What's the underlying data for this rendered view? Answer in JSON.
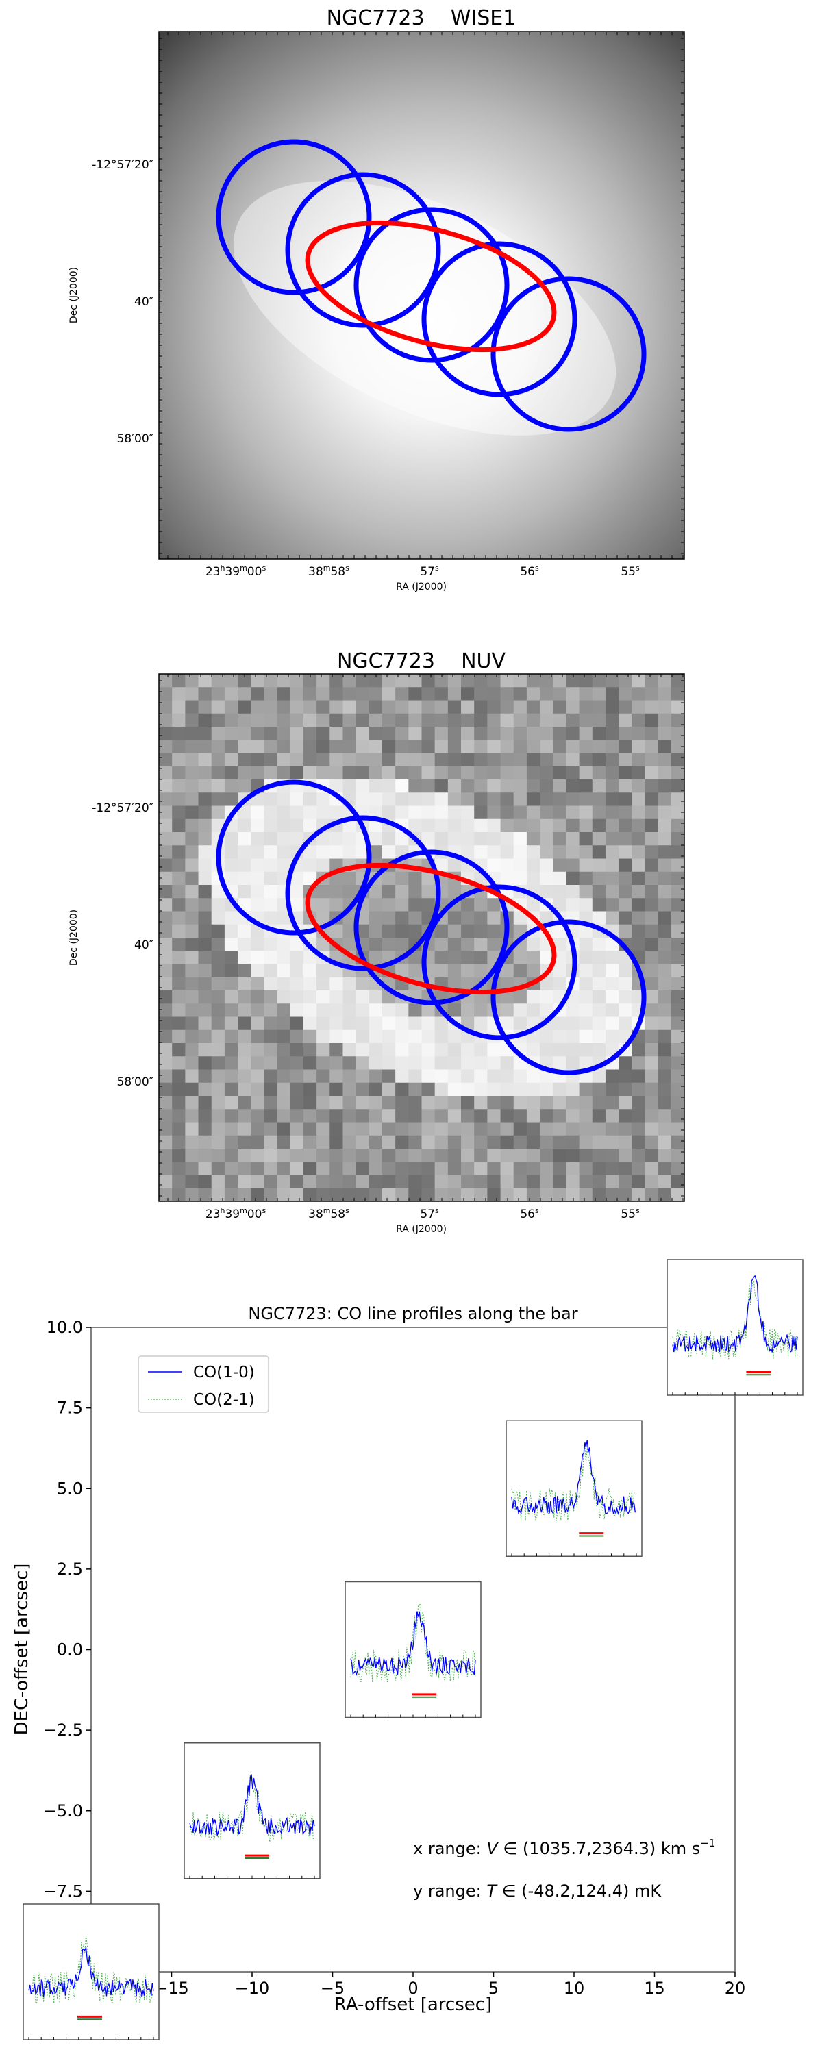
{
  "panels": [
    {
      "title": "NGC7723    WISE1",
      "image": "WISE1 band grayscale map",
      "ylabel": "Dec (J2000)",
      "xlabel": "RA (J2000)",
      "yticks": [
        "-12°57′20″",
        "40″",
        "58′00″"
      ],
      "xticks": [
        {
          "main": "23",
          "s1": "h",
          "m": "39",
          "s2": "m",
          "v": "00",
          "s3": "s"
        },
        {
          "main": "38",
          "s1": "m",
          "m": "58",
          "s2": "s"
        },
        {
          "main": "57",
          "s1": "s"
        },
        {
          "main": "56",
          "s1": "s"
        },
        {
          "main": "55",
          "s1": "s"
        }
      ],
      "circle_color": "#0000ff",
      "bar_color": "#ff0000"
    },
    {
      "title": "NGC7723    NUV",
      "image": "NUV band grayscale map",
      "ylabel": "Dec (J2000)",
      "xlabel": "RA (J2000)",
      "yticks": [
        "-12°57′20″",
        "40″",
        "58′00″"
      ],
      "xticks": [
        {
          "main": "23",
          "s1": "h",
          "m": "39",
          "s2": "m",
          "v": "00",
          "s3": "s"
        },
        {
          "main": "38",
          "s1": "m",
          "m": "58",
          "s2": "s"
        },
        {
          "main": "57",
          "s1": "s"
        },
        {
          "main": "56",
          "s1": "s"
        },
        {
          "main": "55",
          "s1": "s"
        }
      ],
      "circle_color": "#0000ff",
      "bar_color": "#ff0000"
    }
  ],
  "chart_data": {
    "type": "scatter",
    "title": "NGC7723: CO line profiles along the bar",
    "xlabel": "RA-offset [arcsec]",
    "ylabel": "DEC-offset [arcsec]",
    "xlim": [
      -20,
      20
    ],
    "ylim": [
      -10,
      10
    ],
    "xticks": [
      "−15",
      "−10",
      "−5",
      "0",
      "5",
      "10",
      "15",
      "20"
    ],
    "yticks": [
      "−7.5",
      "−5.0",
      "−2.5",
      "0.0",
      "2.5",
      "5.0",
      "7.5",
      "10.0"
    ],
    "legend": {
      "placement": "top-left",
      "entries": [
        {
          "name": "CO(1-0)",
          "color": "#0000ff"
        },
        {
          "name": "CO(2-1)",
          "color": "#4caf50"
        }
      ]
    },
    "spectra_positions": [
      {
        "x": -20.0,
        "y": -10.0
      },
      {
        "x": -10.0,
        "y": -5.0
      },
      {
        "x": 0.0,
        "y": 0.0
      },
      {
        "x": 10.0,
        "y": 5.0
      },
      {
        "x": 20.0,
        "y": 10.0
      }
    ],
    "annotation_x": {
      "prefix": "x range: ",
      "var": "V",
      "range": " ∈ (1035.7,2364.3) km s",
      "sup": "−1"
    },
    "annotation_y": {
      "prefix": "y range: ",
      "var": "T",
      "range": " ∈ (-48.2,124.4) mK"
    }
  }
}
